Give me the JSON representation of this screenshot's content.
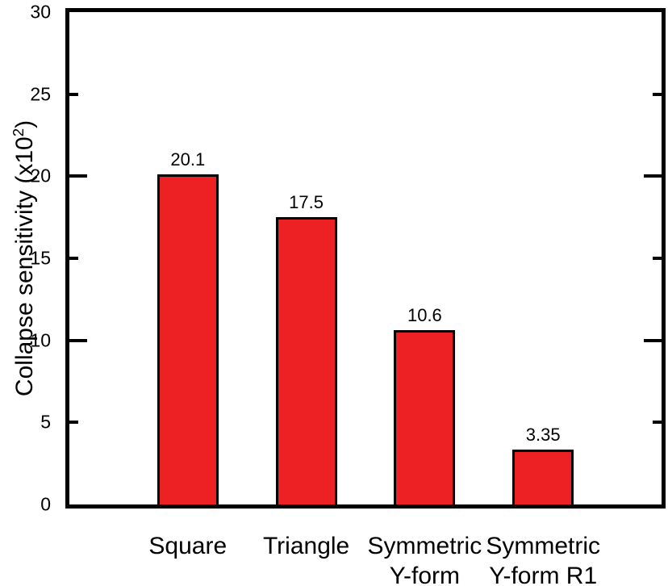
{
  "figure": {
    "background": "#FFFFFF"
  },
  "chart_data": {
    "type": "bar",
    "title": "",
    "xlabel": "",
    "ylabel": "Collapse sensitivity (x10²)",
    "ylabel_parts": {
      "prefix": "Collapse sensitivity (x10",
      "sup": "2",
      "suffix": ")"
    },
    "categories": [
      "Square",
      "Triangle",
      "Symmetric\nY-form",
      "Symmetric\nY-form R1"
    ],
    "values": [
      20.1,
      17.5,
      10.6,
      3.35
    ],
    "value_labels": [
      "20.1",
      "17.5",
      "10.6",
      "3.35"
    ],
    "ylim": [
      0,
      30
    ],
    "yticks": [
      30,
      25,
      20,
      15,
      10,
      5,
      0
    ],
    "major_yticks": [
      30,
      20,
      10,
      0
    ],
    "grid": false,
    "legend": "none",
    "tick_sides": "left-and-right-inward",
    "bar_color": "#ED2124",
    "bar_border_color": "#000000",
    "axis_color": "#000000",
    "bar_width_frac": 0.1035
  }
}
